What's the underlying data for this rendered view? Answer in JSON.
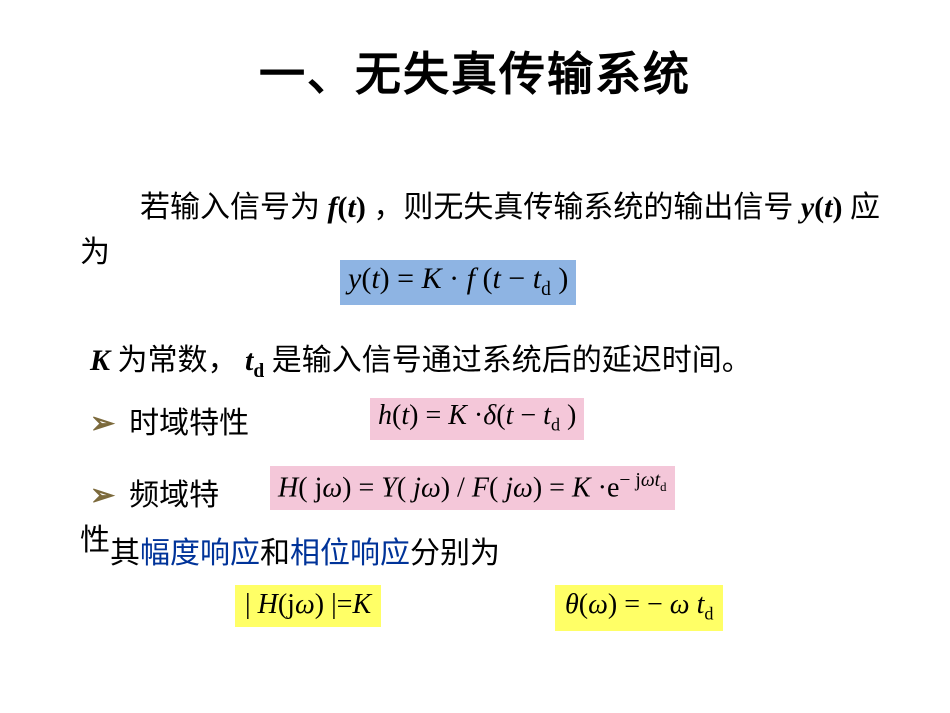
{
  "colors": {
    "background": "#ffffff",
    "text": "#000000",
    "highlight_blue": "#8eb4e3",
    "highlight_pink": "#f4c7d9",
    "highlight_yellow": "#ffff66",
    "accent_text": "#003399",
    "bullet_color": "#7c6a3c"
  },
  "typography": {
    "title_fontsize": 46,
    "body_fontsize": 30,
    "eq_fontsize": 28,
    "title_family": "SimHei",
    "body_family": "SimSun",
    "eq_family": "Times New Roman"
  },
  "title": "一、无失真传输系统",
  "para1_pre": "若输入信号为 ",
  "para1_ft": "f(t)",
  "para1_mid": " ，则无失真传输系统的输出信号 ",
  "para1_yt": "y(t)",
  "para1_post": " 应为",
  "equation1": {
    "text": "y(t) = K · f (t − t_d )",
    "bg": "#8eb4e3"
  },
  "para2_K": "K",
  "para2_a": " 为常数， ",
  "para2_td": "t_d",
  "para2_b": " 是输入信号通过系统后的延迟时间。",
  "bullet_glyph": "➢",
  "bullet1_label": "时域特性",
  "equation2": {
    "text": "h(t) = K · δ(t − t_d )",
    "bg": "#f4c7d9"
  },
  "bullet2_label": "频域特",
  "bullet2_cont": "性",
  "equation3": {
    "text": "H( jω) = Y( jω) / F( jω) = K · e^{− jωt_d}",
    "bg": "#f4c7d9"
  },
  "para3_a": "其",
  "para3_b": "幅度响应",
  "para3_c": "和",
  "para3_d": "相位响应",
  "para3_e": "分别为",
  "equation4": {
    "text": "| H(jω) | = K",
    "bg": "#ffff66"
  },
  "equation5": {
    "text": "θ(ω) = − ω t_d",
    "bg": "#ffff66"
  }
}
